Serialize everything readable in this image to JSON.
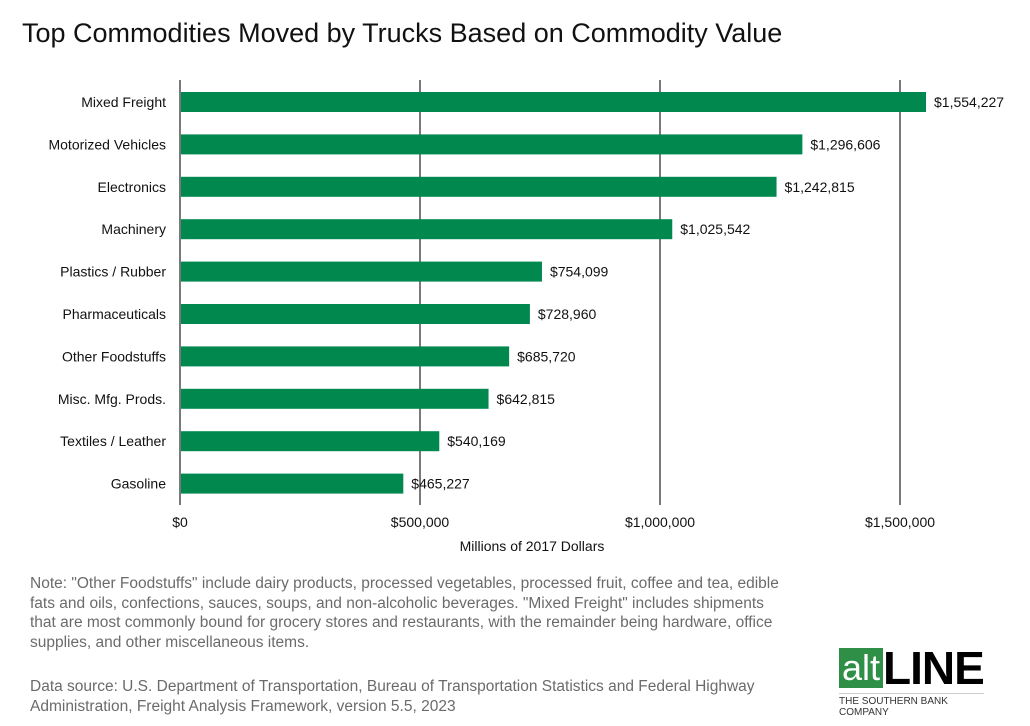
{
  "chart_data": {
    "type": "bar",
    "orientation": "horizontal",
    "title": "Top Commodities Moved by Trucks Based on Commodity Value",
    "xlabel": "Millions of 2017 Dollars",
    "ylabel": "",
    "categories": [
      "Mixed Freight",
      "Motorized Vehicles",
      "Electronics",
      "Machinery",
      "Plastics / Rubber",
      "Pharmaceuticals",
      "Other Foodstuffs",
      "Misc. Mfg. Prods.",
      "Textiles / Leather",
      "Gasoline"
    ],
    "values": [
      1554227,
      1296606,
      1242815,
      1025542,
      754099,
      728960,
      685720,
      642815,
      540169,
      465227
    ],
    "data_labels": [
      "$1,554,227",
      "$1,296,606",
      "$1,242,815",
      "$1,025,542",
      "$754,099",
      "$728,960",
      "$685,720",
      "$642,815",
      "$540,169",
      "$465,227"
    ],
    "xlim": [
      0,
      1500000
    ],
    "xticks": [
      0,
      500000,
      1000000,
      1500000
    ],
    "xtick_labels": [
      "$0",
      "$500,000",
      "$1,000,000",
      "$1,500,000"
    ],
    "grid": "vertical",
    "bar_color": "#00884f"
  },
  "notes": {
    "note": "Note: \"Other Foodstuffs\" include dairy products, processed vegetables, processed fruit, coffee and tea, edible fats and oils, confections, sauces, soups, and non-alcoholic beverages. \"Mixed Freight\" includes shipments that are most commonly bound for grocery stores and restaurants, with the remainder being hardware, office supplies, and other miscellaneous items.",
    "source": "Data source: U.S. Department of Transportation, Bureau of Transportation Statistics and Federal Highway Administration, Freight Analysis Framework, version 5.5, 2023"
  },
  "logo": {
    "alt": "alt",
    "line": "LINE",
    "tagline": "THE SOUTHERN BANK COMPANY"
  }
}
